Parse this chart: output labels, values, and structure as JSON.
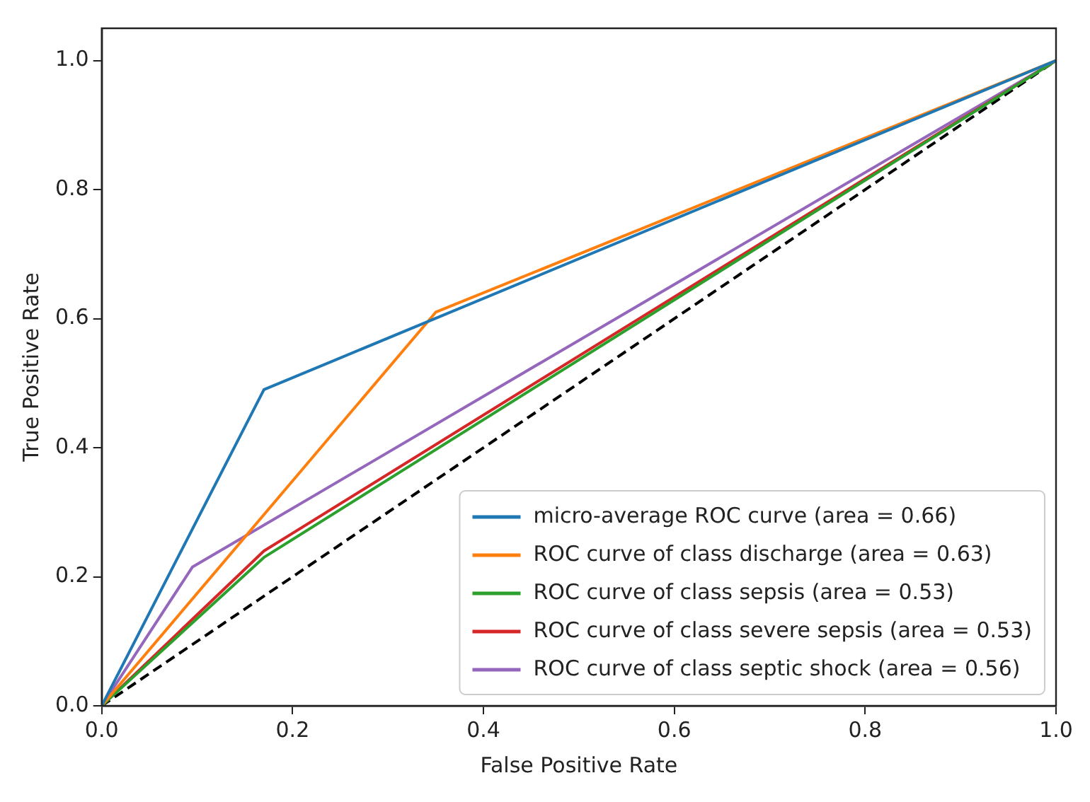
{
  "chart_data": {
    "type": "line",
    "xlabel": "False Positive Rate",
    "ylabel": "True Positive Rate",
    "xlim": [
      0,
      1
    ],
    "ylim": [
      0,
      1.05
    ],
    "xticks": [
      {
        "value": 0,
        "label": "0.0"
      },
      0.2,
      0.4,
      0.6,
      0.8,
      {
        "value": 1,
        "label": "1.0"
      }
    ],
    "yticks": [
      {
        "value": 0,
        "label": "0.0"
      },
      0.2,
      0.4,
      0.6,
      0.8,
      {
        "value": 1,
        "label": "1.0"
      }
    ],
    "grid": false,
    "legend": "bottom right",
    "marker": "none",
    "series": [
      {
        "name": "micro-average ROC curve (area = 0.66)",
        "color": "#1f77b4",
        "x": [
          0,
          0.17,
          1
        ],
        "values": [
          0,
          0.49,
          1
        ]
      },
      {
        "name": "ROC curve of class discharge (area = 0.63)",
        "color": "#ff7f0e",
        "x": [
          0,
          0.35,
          1
        ],
        "values": [
          0,
          0.61,
          1
        ]
      },
      {
        "name": "ROC curve of class sepsis (area = 0.53)",
        "color": "#2ca02c",
        "x": [
          0,
          0.17,
          1
        ],
        "values": [
          0,
          0.23,
          1
        ]
      },
      {
        "name": "ROC curve of class severe sepsis (area = 0.53)",
        "color": "#d62728",
        "x": [
          0,
          0.17,
          1
        ],
        "values": [
          0,
          0.24,
          1
        ]
      },
      {
        "name": "ROC curve of class septic shock (area = 0.56)",
        "color": "#9467bd",
        "x": [
          0,
          0.095,
          1
        ],
        "values": [
          0,
          0.215,
          1
        ]
      },
      {
        "color": "#000000",
        "line_style": "dashed",
        "x": [
          0,
          1
        ],
        "values": [
          0,
          1
        ]
      }
    ]
  }
}
